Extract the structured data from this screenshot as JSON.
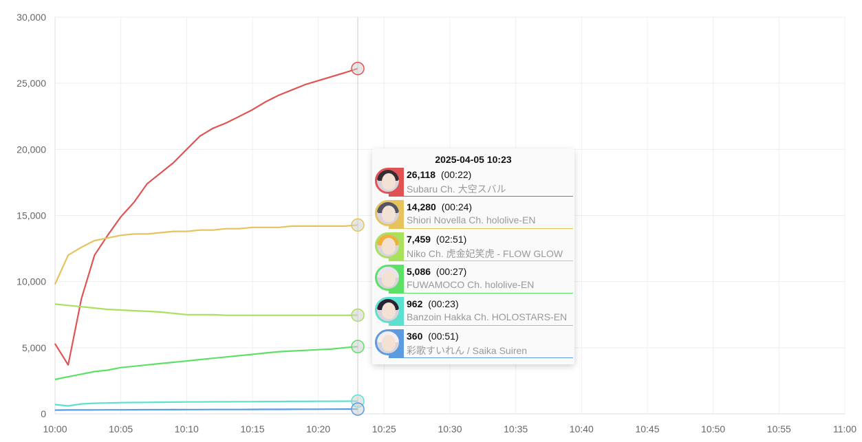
{
  "chart_data": {
    "type": "line",
    "title": "",
    "xlabel": "",
    "ylabel": "",
    "x_range": [
      "10:00",
      "11:00"
    ],
    "x_ticks": [
      "10:00",
      "10:05",
      "10:10",
      "10:15",
      "10:20",
      "10:25",
      "10:30",
      "10:35",
      "10:40",
      "10:45",
      "10:50",
      "10:55",
      "11:00"
    ],
    "ylim": [
      0,
      30000
    ],
    "y_ticks": [
      "0",
      "5,000",
      "10,000",
      "15,000",
      "20,000",
      "25,000",
      "30,000"
    ],
    "grid": true,
    "hover_time": "10:23",
    "series": [
      {
        "name": "Subaru Ch. 大空スバル",
        "color": "#e05353",
        "x": [
          "10:00",
          "10:01",
          "10:02",
          "10:03",
          "10:04",
          "10:05",
          "10:06",
          "10:07",
          "10:08",
          "10:09",
          "10:10",
          "10:11",
          "10:12",
          "10:13",
          "10:14",
          "10:15",
          "10:16",
          "10:17",
          "10:18",
          "10:19",
          "10:20",
          "10:21",
          "10:22",
          "10:23"
        ],
        "values": [
          5300,
          3700,
          8700,
          12000,
          13500,
          14900,
          16000,
          17400,
          18200,
          19000,
          20000,
          21000,
          21600,
          22000,
          22500,
          23000,
          23600,
          24100,
          24500,
          24900,
          25200,
          25500,
          25800,
          26118
        ]
      },
      {
        "name": "Shiori Novella Ch. hololive-EN",
        "color": "#e6c35c",
        "x": [
          "10:00",
          "10:01",
          "10:02",
          "10:03",
          "10:04",
          "10:05",
          "10:06",
          "10:07",
          "10:08",
          "10:09",
          "10:10",
          "10:11",
          "10:12",
          "10:13",
          "10:14",
          "10:15",
          "10:16",
          "10:17",
          "10:18",
          "10:19",
          "10:20",
          "10:21",
          "10:22",
          "10:23"
        ],
        "values": [
          9800,
          12000,
          12600,
          13100,
          13300,
          13500,
          13600,
          13600,
          13700,
          13800,
          13800,
          13900,
          13900,
          14000,
          14000,
          14100,
          14100,
          14100,
          14200,
          14200,
          14200,
          14200,
          14200,
          14280
        ]
      },
      {
        "name": "Niko Ch. 虎金妃笑虎 - FLOW GLOW",
        "color": "#a9e05c",
        "x": [
          "10:00",
          "10:01",
          "10:02",
          "10:03",
          "10:04",
          "10:05",
          "10:06",
          "10:07",
          "10:08",
          "10:09",
          "10:10",
          "10:11",
          "10:12",
          "10:13",
          "10:14",
          "10:15",
          "10:16",
          "10:17",
          "10:18",
          "10:19",
          "10:20",
          "10:21",
          "10:22",
          "10:23"
        ],
        "values": [
          8300,
          8200,
          8100,
          8000,
          7900,
          7850,
          7800,
          7750,
          7700,
          7600,
          7500,
          7500,
          7500,
          7450,
          7450,
          7450,
          7450,
          7450,
          7450,
          7450,
          7450,
          7450,
          7450,
          7459
        ]
      },
      {
        "name": "FUWAMOCO Ch. hololive-EN",
        "color": "#5ce065",
        "x": [
          "10:00",
          "10:01",
          "10:02",
          "10:03",
          "10:04",
          "10:05",
          "10:06",
          "10:07",
          "10:08",
          "10:09",
          "10:10",
          "10:11",
          "10:12",
          "10:13",
          "10:14",
          "10:15",
          "10:16",
          "10:17",
          "10:18",
          "10:19",
          "10:20",
          "10:21",
          "10:22",
          "10:23"
        ],
        "values": [
          2600,
          2800,
          3000,
          3200,
          3300,
          3500,
          3600,
          3700,
          3800,
          3900,
          4000,
          4100,
          4200,
          4300,
          4400,
          4500,
          4600,
          4700,
          4750,
          4800,
          4850,
          4900,
          5000,
          5086
        ]
      },
      {
        "name": "Banzoin Hakka Ch. HOLOSTARS-EN",
        "color": "#5ce0d0",
        "x": [
          "10:00",
          "10:01",
          "10:02",
          "10:03",
          "10:04",
          "10:05",
          "10:06",
          "10:07",
          "10:08",
          "10:09",
          "10:10",
          "10:11",
          "10:12",
          "10:13",
          "10:14",
          "10:15",
          "10:16",
          "10:17",
          "10:18",
          "10:19",
          "10:20",
          "10:21",
          "10:22",
          "10:23"
        ],
        "values": [
          700,
          600,
          750,
          800,
          820,
          850,
          860,
          870,
          880,
          890,
          900,
          900,
          910,
          910,
          920,
          920,
          930,
          930,
          940,
          940,
          950,
          950,
          955,
          962
        ]
      },
      {
        "name": "彩歌すいれん / Saika Suiren",
        "color": "#5c9be0",
        "x": [
          "10:00",
          "10:01",
          "10:02",
          "10:03",
          "10:04",
          "10:05",
          "10:06",
          "10:07",
          "10:08",
          "10:09",
          "10:10",
          "10:11",
          "10:12",
          "10:13",
          "10:14",
          "10:15",
          "10:16",
          "10:17",
          "10:18",
          "10:19",
          "10:20",
          "10:21",
          "10:22",
          "10:23"
        ],
        "values": [
          280,
          290,
          290,
          295,
          300,
          300,
          305,
          310,
          310,
          315,
          320,
          320,
          325,
          330,
          330,
          335,
          340,
          340,
          345,
          350,
          350,
          355,
          358,
          360
        ]
      }
    ]
  },
  "tooltip": {
    "title": "2025-04-05 10:23",
    "rows": [
      {
        "value": "26,118",
        "duration": "(00:22)",
        "name": "Subaru Ch. 大空スバル",
        "color": "#e05353",
        "hair": "#3a2a33",
        "icon": "avatar-subaru"
      },
      {
        "value": "14,280",
        "duration": "(00:24)",
        "name": "Shiori Novella Ch. hololive-EN",
        "color": "#e6c35c",
        "hair": "#555566",
        "icon": "avatar-shiori"
      },
      {
        "value": "7,459",
        "duration": "(02:51)",
        "name": "Niko Ch. 虎金妃笑虎 - FLOW GLOW",
        "color": "#a9e05c",
        "hair": "#f0b040",
        "icon": "avatar-niko"
      },
      {
        "value": "5,086",
        "duration": "(00:27)",
        "name": "FUWAMOCO Ch. hololive-EN",
        "color": "#5ce065",
        "hair": "#e9e3ef",
        "icon": "avatar-fuwamoco"
      },
      {
        "value": "962",
        "duration": "(00:23)",
        "name": "Banzoin Hakka Ch. HOLOSTARS-EN",
        "color": "#5ce0d0",
        "hair": "#2a2233",
        "icon": "avatar-hakka"
      },
      {
        "value": "360",
        "duration": "(00:51)",
        "name": "彩歌すいれん / Saika Suiren",
        "color": "#5c9be0",
        "hair": "#f2eef2",
        "icon": "avatar-suiren"
      }
    ]
  }
}
